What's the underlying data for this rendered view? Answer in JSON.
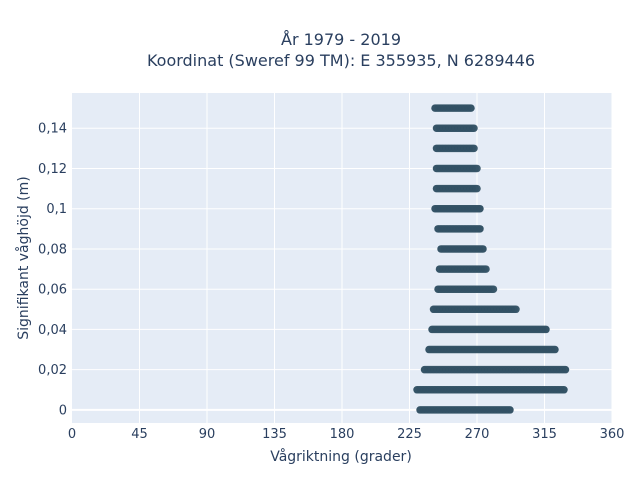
{
  "chart_data": {
    "type": "scatter",
    "title_line1": "År 1979 - 2019",
    "title_line2": "Koordinat (Sweref 99 TM): E 355935, N 6289446",
    "xlabel": "Vågriktning (grader)",
    "ylabel": "Signifikant våghöjd (m)",
    "xlim": [
      0,
      360
    ],
    "ylim": [
      -0.0065,
      0.1575
    ],
    "xticks": [
      "0",
      "45",
      "90",
      "135",
      "180",
      "225",
      "270",
      "315",
      "360"
    ],
    "xtick_values": [
      0,
      45,
      90,
      135,
      180,
      225,
      270,
      315,
      360
    ],
    "yticks": [
      "0",
      "0,02",
      "0,04",
      "0,06",
      "0,08",
      "0,1",
      "0,12",
      "0,14"
    ],
    "ytick_values": [
      0,
      0.02,
      0.04,
      0.06,
      0.08,
      0.1,
      0.12,
      0.14
    ],
    "grid": true,
    "marker_color": "#2f4f62",
    "plot_bg": "#e5ecf6",
    "bands": [
      {
        "y": 0.0,
        "xmin": 232,
        "xmax": 292
      },
      {
        "y": 0.01,
        "xmin": 230,
        "xmax": 328
      },
      {
        "y": 0.02,
        "xmin": 235,
        "xmax": 329
      },
      {
        "y": 0.03,
        "xmin": 238,
        "xmax": 322
      },
      {
        "y": 0.04,
        "xmin": 240,
        "xmax": 316
      },
      {
        "y": 0.05,
        "xmin": 241,
        "xmax": 296
      },
      {
        "y": 0.06,
        "xmin": 244,
        "xmax": 281
      },
      {
        "y": 0.07,
        "xmin": 245,
        "xmax": 276
      },
      {
        "y": 0.08,
        "xmin": 246,
        "xmax": 274
      },
      {
        "y": 0.09,
        "xmin": 244,
        "xmax": 272
      },
      {
        "y": 0.1,
        "xmin": 242,
        "xmax": 272
      },
      {
        "y": 0.11,
        "xmin": 243,
        "xmax": 270
      },
      {
        "y": 0.12,
        "xmin": 243,
        "xmax": 270
      },
      {
        "y": 0.13,
        "xmin": 243,
        "xmax": 268
      },
      {
        "y": 0.14,
        "xmin": 243,
        "xmax": 268
      },
      {
        "y": 0.15,
        "xmin": 242,
        "xmax": 266
      }
    ]
  }
}
